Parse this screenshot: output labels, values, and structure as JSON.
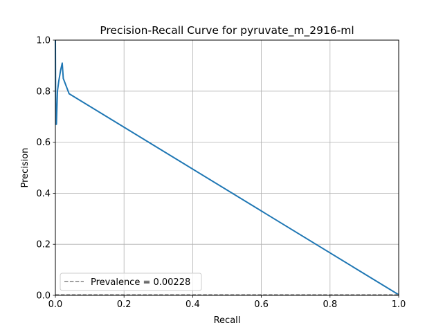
{
  "chart_data": {
    "type": "line",
    "title": "Precision-Recall Curve for pyruvate_m_2916-ml",
    "xlabel": "Recall",
    "ylabel": "Precision",
    "xlim": [
      0.0,
      1.0
    ],
    "ylim": [
      0.0,
      1.0
    ],
    "x_ticks": [
      "0.0",
      "0.2",
      "0.4",
      "0.6",
      "0.8",
      "1.0"
    ],
    "y_ticks": [
      "0.0",
      "0.2",
      "0.4",
      "0.6",
      "0.8",
      "1.0"
    ],
    "grid": true,
    "legend_placement": "lower-left",
    "series": [
      {
        "color": "#1f77b4",
        "style": "solid",
        "x": [
          0.0,
          0.001,
          0.003,
          0.006,
          0.01,
          0.015,
          0.02,
          0.023,
          0.04,
          1.0
        ],
        "y": [
          1.0,
          0.67,
          0.67,
          0.8,
          0.84,
          0.88,
          0.91,
          0.85,
          0.79,
          0.0023
        ]
      },
      {
        "name": "Prevalence = 0.00228",
        "color": "#808080",
        "style": "dashed",
        "x": [
          0.0,
          1.0
        ],
        "y": [
          0.00228,
          0.00228
        ]
      }
    ]
  }
}
